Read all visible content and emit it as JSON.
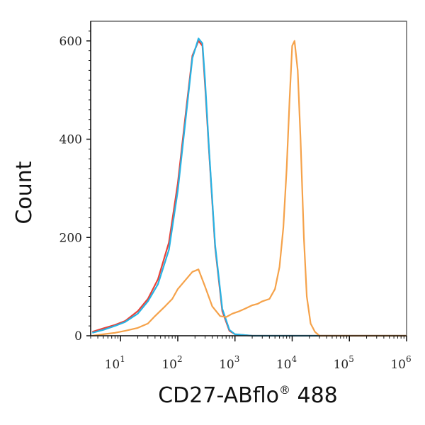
{
  "chart_data": {
    "type": "line",
    "title": "",
    "xlabel": "CD27-ABflo",
    "xlabel_sup": "®",
    "xlabel_suffix": " 488",
    "ylabel": "Count",
    "x_scale": "log",
    "xlim": [
      3,
      1000000
    ],
    "ylim": [
      0,
      640
    ],
    "grid": false,
    "legend": "none",
    "x_ticks": [
      {
        "base": "10",
        "exp": "1",
        "value": 10
      },
      {
        "base": "10",
        "exp": "2",
        "value": 100
      },
      {
        "base": "10",
        "exp": "3",
        "value": 1000
      },
      {
        "base": "10",
        "exp": "4",
        "value": 10000
      },
      {
        "base": "10",
        "exp": "5",
        "value": 100000
      },
      {
        "base": "10",
        "exp": "6",
        "value": 1000000
      }
    ],
    "y_ticks": [
      {
        "label": "0",
        "value": 0
      },
      {
        "label": "200",
        "value": 200
      },
      {
        "label": "400",
        "value": 400
      },
      {
        "label": "600",
        "value": 600
      }
    ],
    "series": [
      {
        "color": "#e8433a",
        "x": [
          3.2,
          5,
          8,
          12,
          20,
          30,
          45,
          70,
          100,
          140,
          180,
          230,
          270,
          300,
          350,
          450,
          600,
          800,
          1000,
          2000,
          1000000
        ],
        "y": [
          8,
          15,
          22,
          30,
          50,
          75,
          115,
          190,
          310,
          460,
          570,
          600,
          590,
          510,
          380,
          180,
          50,
          10,
          3,
          0,
          0
        ]
      },
      {
        "color": "#27b3e4",
        "x": [
          3.2,
          5,
          8,
          12,
          20,
          30,
          45,
          70,
          100,
          140,
          180,
          230,
          270,
          300,
          350,
          450,
          600,
          800,
          1000,
          2000,
          1000000
        ],
        "y": [
          6,
          12,
          20,
          28,
          45,
          70,
          105,
          175,
          295,
          450,
          565,
          605,
          595,
          520,
          385,
          185,
          55,
          12,
          3,
          0,
          0
        ]
      },
      {
        "color": "#f5a24a",
        "x": [
          3.2,
          5,
          8,
          12,
          20,
          30,
          40,
          60,
          80,
          100,
          140,
          180,
          230,
          300,
          400,
          550,
          700,
          900,
          1200,
          1500,
          2000,
          2500,
          3000,
          4000,
          5000,
          6000,
          7000,
          8000,
          9000,
          10000,
          11000,
          12500,
          14000,
          16000,
          18000,
          21000,
          25000,
          30000,
          1000000
        ],
        "y": [
          0,
          3,
          6,
          10,
          16,
          25,
          40,
          60,
          75,
          95,
          115,
          130,
          135,
          100,
          60,
          40,
          38,
          45,
          50,
          55,
          62,
          65,
          70,
          75,
          95,
          140,
          220,
          340,
          480,
          590,
          600,
          540,
          400,
          200,
          80,
          25,
          8,
          0,
          0
        ]
      }
    ]
  }
}
